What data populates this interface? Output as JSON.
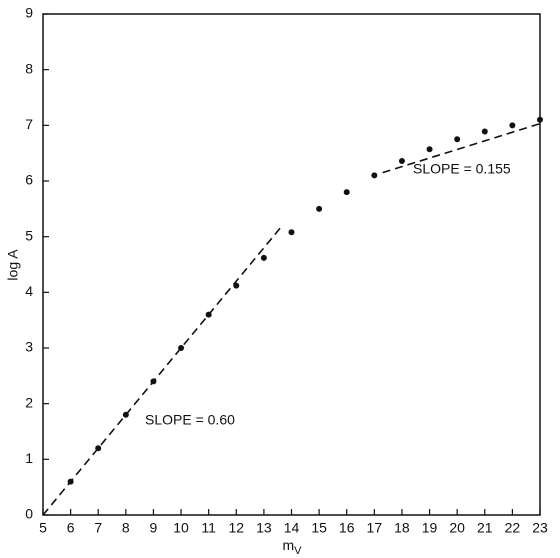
{
  "chart_data": {
    "type": "scatter",
    "xlabel": "m",
    "xlabel_subscript": "V",
    "ylabel": "log A",
    "x": [
      6,
      7,
      8,
      9,
      10,
      11,
      12,
      13,
      14,
      15,
      16,
      17,
      18,
      19,
      20,
      21,
      22,
      23
    ],
    "values": [
      0.6,
      1.2,
      1.8,
      2.4,
      3.0,
      3.6,
      4.12,
      4.62,
      5.08,
      5.5,
      5.8,
      6.1,
      6.36,
      6.57,
      6.75,
      6.89,
      7.0,
      7.1
    ],
    "color": "#111111",
    "fit_lines": [
      {
        "x": [
          5,
          13.6
        ],
        "y": [
          0,
          5.16
        ],
        "label": "SLOPE = 0.60"
      },
      {
        "x": [
          17.3,
          23
        ],
        "y": [
          6.15,
          7.03
        ],
        "label": "SLOPE = 0.155"
      }
    ],
    "xlim": [
      5,
      23
    ],
    "xticks": [
      5,
      6,
      7,
      8,
      9,
      10,
      11,
      12,
      13,
      14,
      15,
      16,
      17,
      18,
      19,
      20,
      21,
      22,
      23
    ],
    "ylim": [
      0,
      9
    ],
    "yticks": [
      0,
      1,
      2,
      3,
      4,
      5,
      6,
      7,
      8,
      9
    ]
  }
}
